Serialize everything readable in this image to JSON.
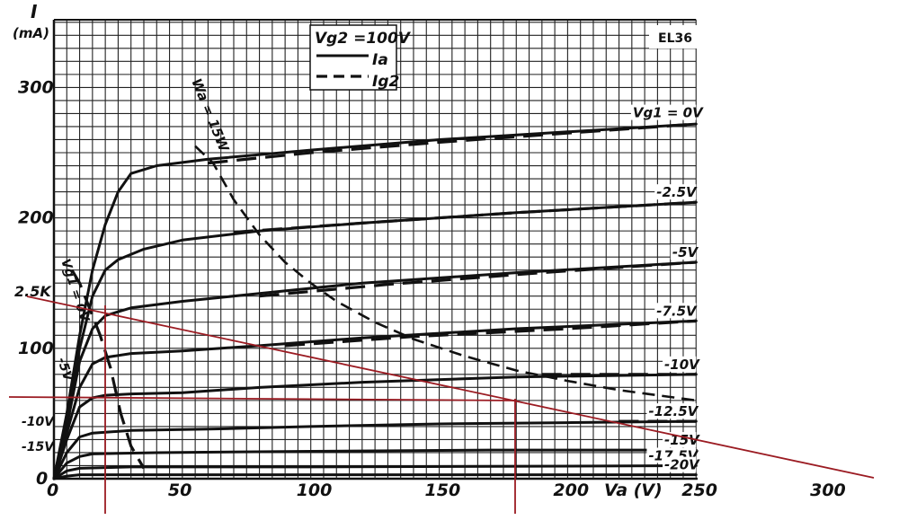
{
  "chart_data": {
    "type": "line",
    "tube_label": "EL36",
    "ylabel_symbol": "I",
    "ylabel_unit": "(mA)",
    "xlabel": "Va (V)",
    "x_ticks": [
      0,
      50,
      100,
      150,
      200,
      250,
      300
    ],
    "y_ticks": [
      0,
      100,
      200,
      300
    ],
    "xlim": [
      0,
      300
    ],
    "ylim": [
      0,
      320
    ],
    "legend": {
      "title": "Vg2 =100V",
      "solid": "Ia",
      "dashed": "Ig2"
    },
    "grid": true,
    "side_labels": [
      "2.5K",
      "-10V",
      "-15V",
      "-5V"
    ],
    "curve_labels": [
      {
        "text": "Vg1 = 0V",
        "va": 250,
        "i": 273
      },
      {
        "text": "-2.5V",
        "va": 250,
        "i": 212
      },
      {
        "text": "-5V",
        "va": 250,
        "i": 166
      },
      {
        "text": "-7.5V",
        "va": 250,
        "i": 121
      },
      {
        "text": "-10V",
        "va": 250,
        "i": 80
      },
      {
        "text": "-12.5V",
        "va": 250,
        "i": 44
      },
      {
        "text": "-15V",
        "va": 250,
        "i": 22
      },
      {
        "text": "-17.5V",
        "va": 250,
        "i": 10
      },
      {
        "text": "-20V",
        "va": 250,
        "i": 3
      }
    ],
    "annotations": {
      "pdiss": "Wa = 15W",
      "vg1_zero": "Vg1 = 0V"
    },
    "series_ia": [
      {
        "name": "Vg1 = 0V",
        "points": [
          [
            0,
            0
          ],
          [
            5,
            50
          ],
          [
            10,
            110
          ],
          [
            15,
            160
          ],
          [
            20,
            195
          ],
          [
            25,
            220
          ],
          [
            30,
            234
          ],
          [
            40,
            240
          ],
          [
            60,
            245
          ],
          [
            100,
            252
          ],
          [
            150,
            260
          ],
          [
            200,
            266
          ],
          [
            250,
            272
          ]
        ]
      },
      {
        "name": "-2.5V",
        "points": [
          [
            0,
            0
          ],
          [
            5,
            45
          ],
          [
            10,
            100
          ],
          [
            15,
            140
          ],
          [
            20,
            160
          ],
          [
            25,
            168
          ],
          [
            35,
            176
          ],
          [
            50,
            183
          ],
          [
            80,
            190
          ],
          [
            120,
            196
          ],
          [
            180,
            204
          ],
          [
            250,
            212
          ]
        ]
      },
      {
        "name": "-5V",
        "points": [
          [
            0,
            0
          ],
          [
            5,
            40
          ],
          [
            10,
            90
          ],
          [
            15,
            115
          ],
          [
            20,
            125
          ],
          [
            30,
            131
          ],
          [
            50,
            136
          ],
          [
            80,
            142
          ],
          [
            120,
            150
          ],
          [
            180,
            158
          ],
          [
            250,
            166
          ]
        ]
      },
      {
        "name": "-7.5V",
        "points": [
          [
            0,
            0
          ],
          [
            5,
            35
          ],
          [
            10,
            70
          ],
          [
            15,
            88
          ],
          [
            20,
            93
          ],
          [
            30,
            96
          ],
          [
            50,
            98
          ],
          [
            80,
            102
          ],
          [
            120,
            108
          ],
          [
            180,
            115
          ],
          [
            250,
            121
          ]
        ]
      },
      {
        "name": "-10V",
        "points": [
          [
            0,
            0
          ],
          [
            5,
            30
          ],
          [
            10,
            55
          ],
          [
            15,
            62
          ],
          [
            20,
            64
          ],
          [
            30,
            65
          ],
          [
            50,
            66
          ],
          [
            80,
            70
          ],
          [
            120,
            74
          ],
          [
            180,
            78
          ],
          [
            250,
            80
          ]
        ]
      },
      {
        "name": "-12.5V",
        "points": [
          [
            0,
            0
          ],
          [
            5,
            20
          ],
          [
            10,
            32
          ],
          [
            15,
            35
          ],
          [
            30,
            37
          ],
          [
            60,
            38
          ],
          [
            100,
            40
          ],
          [
            150,
            42
          ],
          [
            200,
            43
          ],
          [
            250,
            44
          ]
        ]
      },
      {
        "name": "-15V",
        "points": [
          [
            0,
            0
          ],
          [
            5,
            12
          ],
          [
            10,
            17
          ],
          [
            15,
            19
          ],
          [
            40,
            20
          ],
          [
            100,
            21
          ],
          [
            170,
            22
          ],
          [
            250,
            22
          ]
        ]
      },
      {
        "name": "-17.5V",
        "points": [
          [
            0,
            0
          ],
          [
            5,
            6
          ],
          [
            10,
            8
          ],
          [
            30,
            9
          ],
          [
            100,
            9
          ],
          [
            250,
            10
          ]
        ]
      },
      {
        "name": "-20V",
        "points": [
          [
            0,
            0
          ],
          [
            5,
            2
          ],
          [
            10,
            3
          ],
          [
            50,
            3
          ],
          [
            150,
            3
          ],
          [
            250,
            3
          ]
        ]
      }
    ],
    "series_ig2": [
      {
        "name": "Vg1 = 0V",
        "points": [
          [
            60,
            242
          ],
          [
            100,
            250
          ],
          [
            150,
            258
          ],
          [
            200,
            265
          ],
          [
            250,
            272
          ]
        ]
      },
      {
        "name": "-2.5V",
        "points": [
          [
            70,
            189
          ],
          [
            120,
            196
          ],
          [
            180,
            204
          ],
          [
            250,
            212
          ]
        ]
      },
      {
        "name": "-5V",
        "points": [
          [
            80,
            140
          ],
          [
            130,
            149
          ],
          [
            190,
            158
          ],
          [
            250,
            166
          ]
        ]
      },
      {
        "name": "-7.5V",
        "points": [
          [
            90,
            102
          ],
          [
            140,
            109
          ],
          [
            200,
            115
          ],
          [
            250,
            121
          ]
        ]
      },
      {
        "name": "-10V",
        "points": [
          [
            190,
            80
          ],
          [
            220,
            80
          ],
          [
            250,
            80
          ]
        ]
      },
      {
        "name": "-12.5V",
        "points": [
          [
            220,
            44
          ],
          [
            250,
            44
          ]
        ]
      }
    ],
    "series_pdiss": [
      [
        55,
        255
      ],
      [
        62,
        242
      ],
      [
        70,
        214
      ],
      [
        80,
        187
      ],
      [
        90,
        166
      ],
      [
        100,
        150
      ],
      [
        110,
        136
      ],
      [
        125,
        120
      ],
      [
        140,
        107
      ],
      [
        160,
        94
      ],
      [
        180,
        83
      ],
      [
        200,
        75
      ],
      [
        220,
        68
      ],
      [
        250,
        60
      ]
    ],
    "series_vg1_ig2": [
      [
        7,
        160
      ],
      [
        10,
        150
      ],
      [
        14,
        130
      ],
      [
        18,
        110
      ],
      [
        22,
        85
      ],
      [
        26,
        50
      ],
      [
        30,
        25
      ],
      [
        35,
        8
      ]
    ]
  }
}
